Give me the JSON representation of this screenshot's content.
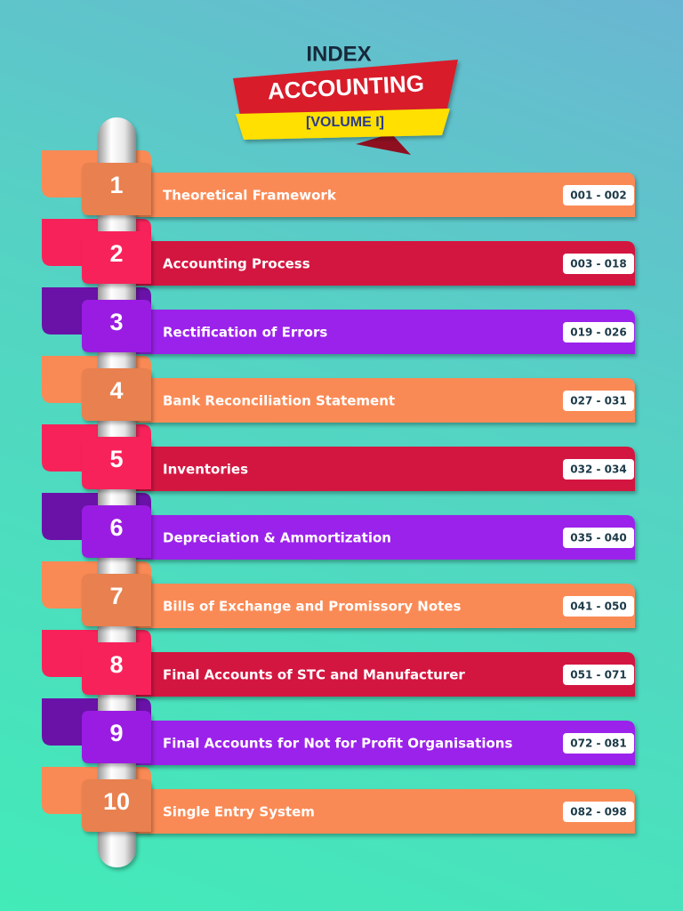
{
  "header": {
    "index": "INDEX",
    "title": "ACCOUNTING",
    "subtitle": "[VOLUME I]"
  },
  "rows": [
    {
      "number": "1",
      "title": "Theoretical Framework",
      "pages": "001 - 002"
    },
    {
      "number": "2",
      "title": "Accounting Process",
      "pages": "003 - 018"
    },
    {
      "number": "3",
      "title": "Rectification of Errors",
      "pages": "019 - 026"
    },
    {
      "number": "4",
      "title": "Bank Reconciliation Statement",
      "pages": "027 - 031"
    },
    {
      "number": "5",
      "title": "Inventories",
      "pages": "032 - 034"
    },
    {
      "number": "6",
      "title": "Depreciation & Ammortization",
      "pages": "035 - 040"
    },
    {
      "number": "7",
      "title": "Bills of Exchange and Promissory Notes",
      "pages": "041 - 050"
    },
    {
      "number": "8",
      "title": "Final Accounts of STC and Manufacturer",
      "pages": "051 - 071"
    },
    {
      "number": "9",
      "title": "Final Accounts for Not for Profit Organisations",
      "pages": "072 - 081"
    },
    {
      "number": "10",
      "title": "Single Entry System",
      "pages": "082 - 098"
    }
  ]
}
